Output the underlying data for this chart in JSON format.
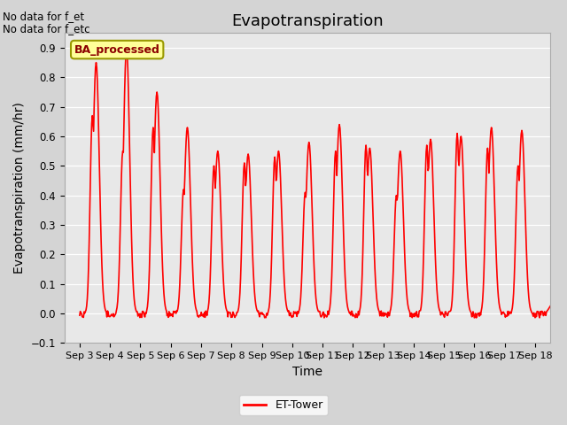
{
  "title": "Evapotranspiration",
  "ylabel": "Evapotranspiration (mm/hr)",
  "xlabel": "Time",
  "ylim": [
    -0.1,
    0.95
  ],
  "yticks": [
    -0.1,
    0.0,
    0.1,
    0.2,
    0.3,
    0.4,
    0.5,
    0.6,
    0.7,
    0.8,
    0.9
  ],
  "line_color": "#ff0000",
  "line_width": 1.2,
  "plot_bg_color": "#e8e8e8",
  "fig_bg_color": "#d4d4d4",
  "annotation_line1": "No data for f_et",
  "annotation_line2": "No data for f_etc",
  "legend_label": "ET-Tower",
  "box_label": "BA_processed",
  "box_facecolor": "#ffff99",
  "box_edgecolor": "#999900",
  "xtick_labels": [
    "Sep 3",
    "Sep 4",
    "Sep 5",
    "Sep 6",
    "Sep 7",
    "Sep 8",
    "Sep 9",
    "Sep 10",
    "Sep 11",
    "Sep 12",
    "Sep 13",
    "Sep 14",
    "Sep 15",
    "Sep 16",
    "Sep 17",
    "Sep 18"
  ],
  "xtick_positions": [
    0,
    1,
    2,
    3,
    4,
    5,
    6,
    7,
    8,
    9,
    10,
    11,
    12,
    13,
    14,
    15
  ],
  "title_fontsize": 13,
  "axis_fontsize": 10,
  "tick_fontsize": 8.5,
  "daily_peaks": [
    0.85,
    0.9,
    0.75,
    0.63,
    0.55,
    0.54,
    0.55,
    0.58,
    0.64,
    0.56,
    0.55,
    0.59,
    0.6,
    0.63,
    0.62,
    0.03
  ],
  "daily_peaks2": [
    0.67,
    0.55,
    0.63,
    0.42,
    0.5,
    0.51,
    0.53,
    0.41,
    0.55,
    0.57,
    0.4,
    0.57,
    0.61,
    0.56,
    0.5,
    0.0
  ]
}
